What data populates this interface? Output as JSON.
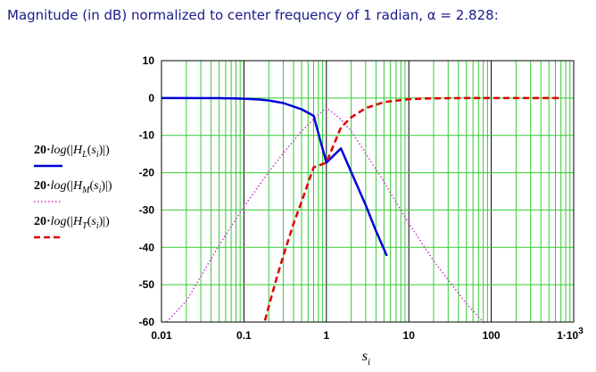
{
  "chart_data": {
    "type": "line",
    "title": "Magnitude (in dB) normalized to center frequency of 1 radian, α = 2.828:",
    "alpha": 2.828,
    "xlabel": "s",
    "xlabel_sub": "i",
    "ylabel": "",
    "x_scale": "log",
    "xlim": [
      0.01,
      1000
    ],
    "ylim": [
      -60,
      10
    ],
    "x_ticks": [
      {
        "value": 0.01,
        "label": "0.01"
      },
      {
        "value": 0.1,
        "label": "0.1"
      },
      {
        "value": 1,
        "label": "1"
      },
      {
        "value": 10,
        "label": "10"
      },
      {
        "value": 100,
        "label": "100"
      },
      {
        "value": 1000,
        "label": "1·10",
        "exponent": "3"
      }
    ],
    "y_ticks": [
      10,
      0,
      -10,
      -20,
      -30,
      -40,
      -50,
      -60
    ],
    "grid": true,
    "legend_position": "left",
    "colors": {
      "grid_major": "#000000",
      "grid_minor": "#33cc33",
      "title": "#1a1a8c"
    },
    "series": [
      {
        "id": "HL",
        "legend_prefix": "20·",
        "legend_func": "log",
        "legend_sym": "H",
        "legend_sub": "L",
        "legend_arg": "s",
        "legend_arg_sub": "i",
        "color": "#0000dd",
        "style": "solid",
        "width": 2.5,
        "x": [
          0.01,
          0.05,
          0.1,
          0.15,
          0.2,
          0.3,
          0.5,
          0.7,
          1,
          1.5,
          2,
          3,
          4,
          5,
          5.4
        ],
        "y": [
          0.0,
          -0.04,
          -0.17,
          -0.39,
          -0.66,
          -1.35,
          -3.03,
          -4.76,
          -17.3,
          -13.5,
          -19.8,
          -28.7,
          -35.6,
          -40.5,
          -42.3
        ]
      },
      {
        "id": "HM",
        "legend_prefix": "20·",
        "legend_func": "log",
        "legend_sym": "H",
        "legend_sub": "M",
        "legend_arg": "s",
        "legend_arg_sub": "i",
        "color": "#cc33cc",
        "style": "dotted",
        "width": 1.5,
        "x": [
          0.0115,
          0.02,
          0.05,
          0.1,
          0.2,
          0.3,
          0.5,
          0.7,
          1,
          1.5,
          2,
          3,
          5,
          10,
          20,
          50,
          80,
          90
        ],
        "y": [
          -60,
          -54.4,
          -39.4,
          -29.1,
          -19.8,
          -14.8,
          -8.9,
          -5.7,
          -2.6,
          -5.7,
          -8.9,
          -14.8,
          -22.5,
          -33.6,
          -43.6,
          -55.1,
          -60.5,
          -62.1
        ]
      },
      {
        "id": "HT",
        "legend_prefix": "20·",
        "legend_func": "log",
        "legend_sym": "H",
        "legend_sub": "T",
        "legend_arg": "s",
        "legend_arg_sub": "i",
        "color": "#dd0000",
        "style": "dashed",
        "width": 2.5,
        "x": [
          0.18,
          0.2,
          0.25,
          0.3,
          0.4,
          0.5,
          0.7,
          1,
          1.5,
          2,
          3,
          5,
          10,
          20,
          50,
          100,
          300,
          700
        ],
        "y": [
          -59.6,
          -55.8,
          -48.1,
          -42.3,
          -33.6,
          -27.8,
          -18.6,
          -17.3,
          -7.9,
          -5.2,
          -2.7,
          -1.1,
          -0.3,
          -0.07,
          -0.01,
          0.0,
          0.0,
          0.0
        ]
      }
    ]
  }
}
